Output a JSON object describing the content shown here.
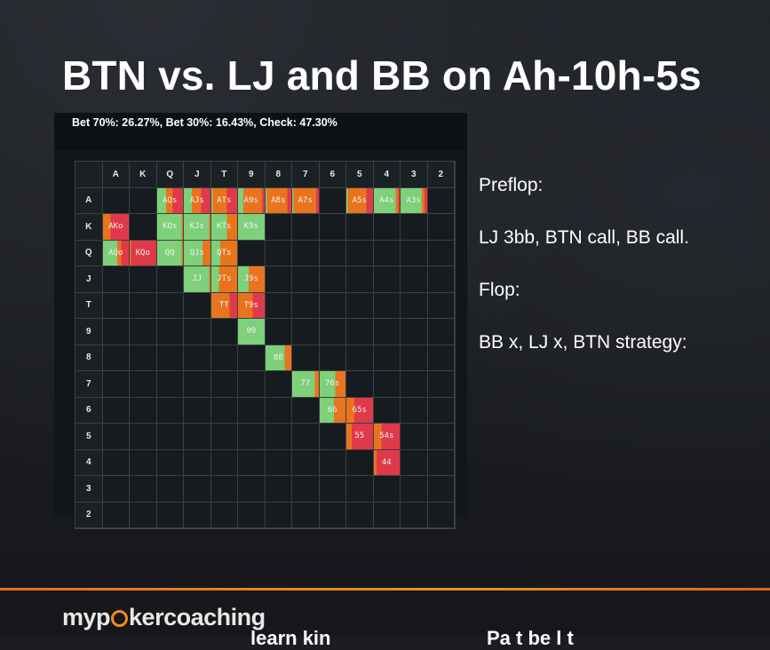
{
  "title": "BTN vs. LJ and BB on Ah-10h-5s",
  "strategy_summary": "Bet 70%: 26.27%, Bet 30%: 16.43%, Check: 47.30%",
  "ranks": [
    "A",
    "K",
    "Q",
    "J",
    "T",
    "9",
    "8",
    "7",
    "6",
    "5",
    "4",
    "3",
    "2"
  ],
  "colors": {
    "check": "#7ed07a",
    "bet_small": "#e8741e",
    "bet_big": "#e0394a",
    "empty_cell": "#151b1e",
    "accent_line": "#f18a24"
  },
  "hands": [
    {
      "row": 0,
      "col": 2,
      "label": "AQs",
      "check": 0.35,
      "small": 0.25,
      "big": 0.4
    },
    {
      "row": 0,
      "col": 3,
      "label": "AJs",
      "check": 0.3,
      "small": 0.35,
      "big": 0.35
    },
    {
      "row": 0,
      "col": 4,
      "label": "ATs",
      "check": 0.05,
      "small": 0.55,
      "big": 0.4
    },
    {
      "row": 0,
      "col": 5,
      "label": "A9s",
      "check": 0.2,
      "small": 0.7,
      "big": 0.1
    },
    {
      "row": 0,
      "col": 6,
      "label": "A8s",
      "check": 0.05,
      "small": 0.8,
      "big": 0.15
    },
    {
      "row": 0,
      "col": 7,
      "label": "A7s",
      "check": 0.05,
      "small": 0.85,
      "big": 0.1
    },
    {
      "row": 0,
      "col": 9,
      "label": "A5s",
      "check": 0.05,
      "small": 0.7,
      "big": 0.25
    },
    {
      "row": 0,
      "col": 10,
      "label": "A4s",
      "check": 0.85,
      "small": 0.1,
      "big": 0.05
    },
    {
      "row": 0,
      "col": 11,
      "label": "A3s",
      "check": 0.8,
      "small": 0.1,
      "big": 0.1
    },
    {
      "row": 1,
      "col": 0,
      "label": "AKo",
      "check": 0.0,
      "small": 0.3,
      "big": 0.7
    },
    {
      "row": 1,
      "col": 2,
      "label": "KQs",
      "check": 0.95,
      "small": 0.05,
      "big": 0.0
    },
    {
      "row": 1,
      "col": 3,
      "label": "KJs",
      "check": 0.95,
      "small": 0.05,
      "big": 0.0
    },
    {
      "row": 1,
      "col": 4,
      "label": "KTs",
      "check": 0.6,
      "small": 0.4,
      "big": 0.0
    },
    {
      "row": 1,
      "col": 5,
      "label": "K9s",
      "check": 1.0,
      "small": 0.0,
      "big": 0.0
    },
    {
      "row": 2,
      "col": 0,
      "label": "AQo",
      "check": 0.55,
      "small": 0.15,
      "big": 0.3
    },
    {
      "row": 2,
      "col": 1,
      "label": "KQo",
      "check": 0.0,
      "small": 0.05,
      "big": 0.95
    },
    {
      "row": 2,
      "col": 2,
      "label": "QQ",
      "check": 0.95,
      "small": 0.05,
      "big": 0.0
    },
    {
      "row": 2,
      "col": 3,
      "label": "QJs",
      "check": 0.7,
      "small": 0.3,
      "big": 0.0
    },
    {
      "row": 2,
      "col": 4,
      "label": "QTs",
      "check": 0.35,
      "small": 0.65,
      "big": 0.0
    },
    {
      "row": 3,
      "col": 3,
      "label": "JJ",
      "check": 0.95,
      "small": 0.05,
      "big": 0.0
    },
    {
      "row": 3,
      "col": 4,
      "label": "JTs",
      "check": 0.3,
      "small": 0.7,
      "big": 0.0
    },
    {
      "row": 3,
      "col": 5,
      "label": "J9s",
      "check": 0.4,
      "small": 0.6,
      "big": 0.0
    },
    {
      "row": 4,
      "col": 4,
      "label": "TT",
      "check": 0.0,
      "small": 0.7,
      "big": 0.3
    },
    {
      "row": 4,
      "col": 5,
      "label": "T9s",
      "check": 0.0,
      "small": 0.55,
      "big": 0.45
    },
    {
      "row": 5,
      "col": 5,
      "label": "99",
      "check": 1.0,
      "small": 0.0,
      "big": 0.0
    },
    {
      "row": 6,
      "col": 6,
      "label": "88",
      "check": 0.75,
      "small": 0.25,
      "big": 0.0
    },
    {
      "row": 7,
      "col": 7,
      "label": "77",
      "check": 0.85,
      "small": 0.15,
      "big": 0.0
    },
    {
      "row": 7,
      "col": 8,
      "label": "76s",
      "check": 0.6,
      "small": 0.4,
      "big": 0.0
    },
    {
      "row": 8,
      "col": 8,
      "label": "66",
      "check": 0.55,
      "small": 0.45,
      "big": 0.0
    },
    {
      "row": 8,
      "col": 9,
      "label": "65s",
      "check": 0.0,
      "small": 0.3,
      "big": 0.7
    },
    {
      "row": 9,
      "col": 9,
      "label": "55",
      "check": 0.0,
      "small": 0.2,
      "big": 0.8
    },
    {
      "row": 9,
      "col": 10,
      "label": "54s",
      "check": 0.0,
      "small": 0.3,
      "big": 0.7
    },
    {
      "row": 10,
      "col": 10,
      "label": "44",
      "check": 0.0,
      "small": 0.1,
      "big": 0.9
    }
  ],
  "side": {
    "preflop_label": "Preflop:",
    "preflop_action": "LJ 3bb, BTN call, BB call.",
    "flop_label": "Flop:",
    "flop_action": "BB x, LJ x, BTN strategy:"
  },
  "footer": {
    "logo_text_1": "myp",
    "logo_text_2": "kercoaching",
    "partial_left": "learn kin",
    "partial_right": "Pa               t  be l   t"
  }
}
